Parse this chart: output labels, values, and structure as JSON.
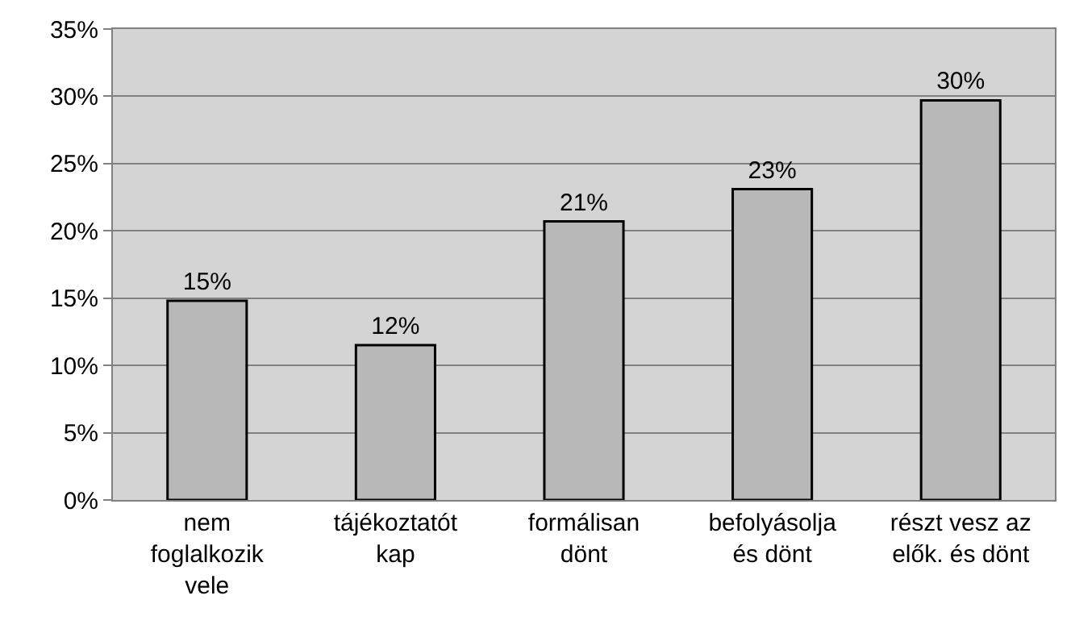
{
  "chart_data": {
    "type": "bar",
    "categories": [
      "nem foglalkozik vele",
      "tájékoztatót kap",
      "formálisan dönt",
      "befolyásolja és dönt",
      "részt vesz az elők. és dönt"
    ],
    "values": [
      14.8,
      11.5,
      20.7,
      23.1,
      29.7
    ],
    "value_labels": [
      "15%",
      "12%",
      "21%",
      "23%",
      "30%"
    ],
    "color": "#b8b8b8",
    "ylim": [
      0,
      35
    ],
    "yticks": [
      {
        "value": 0,
        "label": "0%"
      },
      {
        "value": 5,
        "label": "5%"
      },
      {
        "value": 10,
        "label": "10%"
      },
      {
        "value": 15,
        "label": "15%"
      },
      {
        "value": 20,
        "label": "20%"
      },
      {
        "value": 25,
        "label": "25%"
      },
      {
        "value": 30,
        "label": "30%"
      },
      {
        "value": 35,
        "label": "35%"
      }
    ],
    "grid": "y",
    "legend": false
  }
}
